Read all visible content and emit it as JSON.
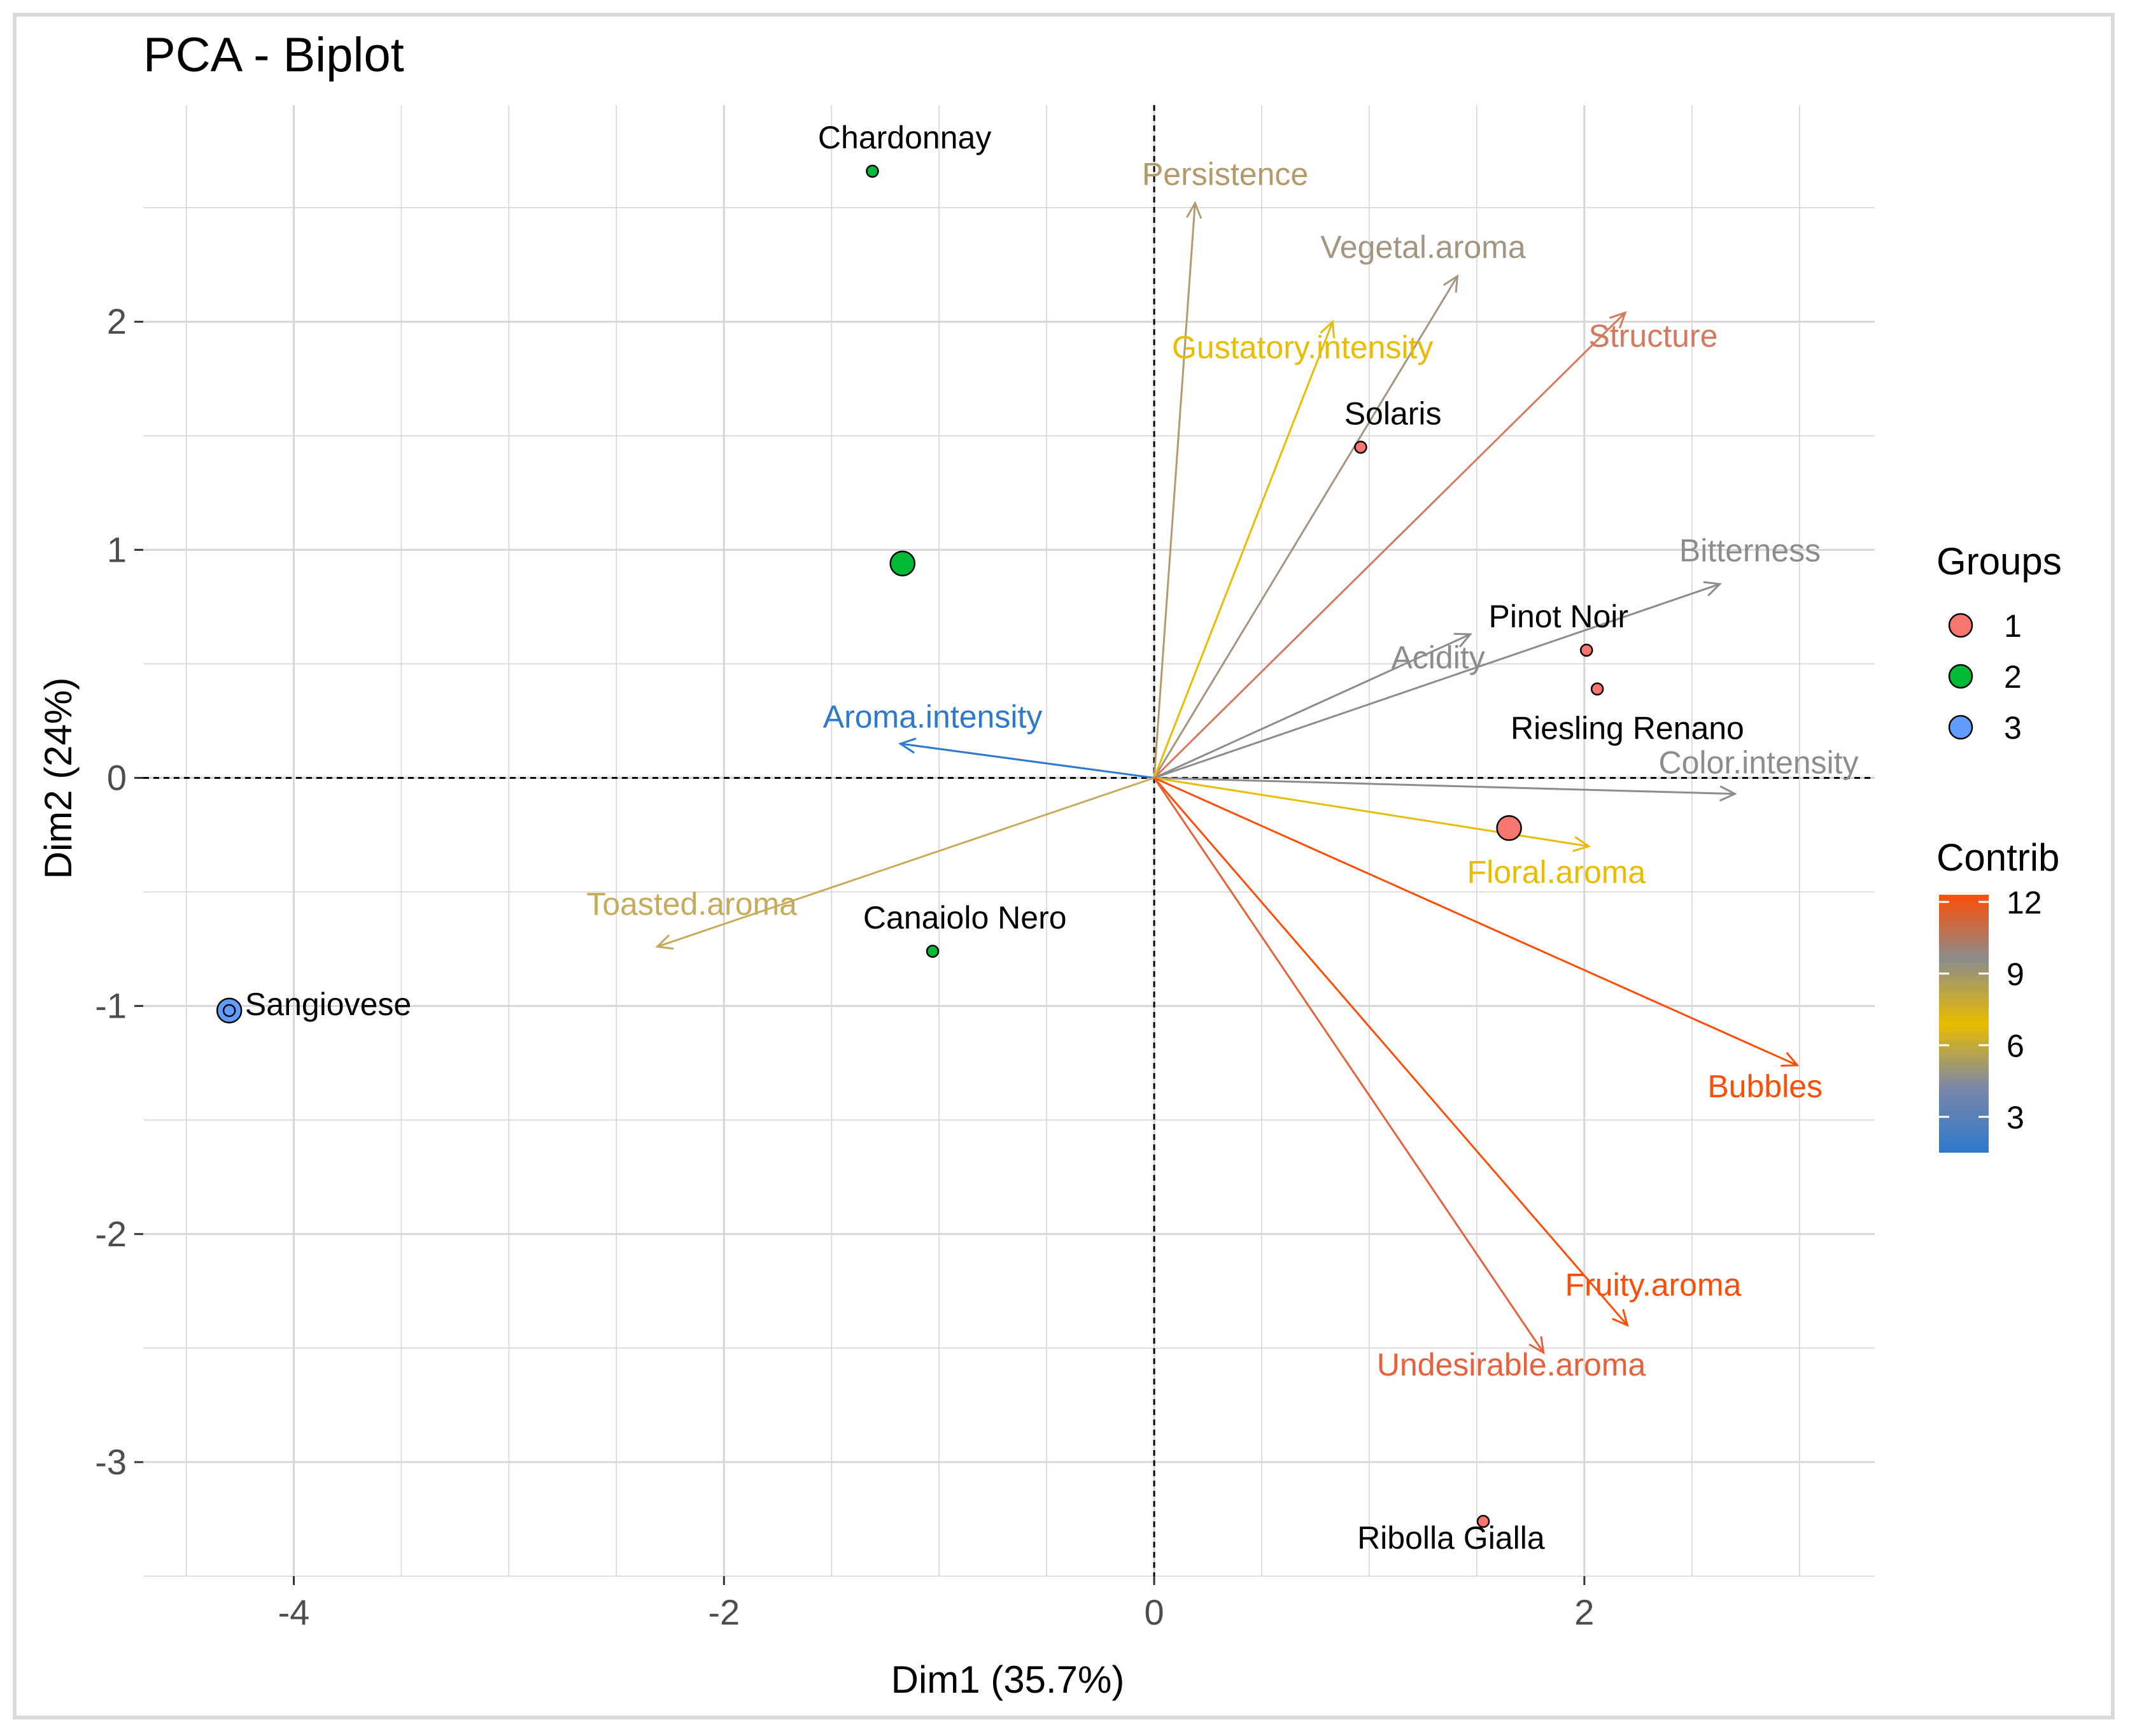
{
  "chart_data": {
    "type": "scatter",
    "subtype": "pca-biplot",
    "title": "PCA - Biplot",
    "xlabel": "Dim1 (35.7%)",
    "ylabel": "Dim2 (24%)",
    "xlim": [
      -4.7,
      3.35
    ],
    "ylim": [
      -3.5,
      2.95
    ],
    "xticks": [
      -4,
      -2,
      0,
      2
    ],
    "yticks": [
      -3,
      -2,
      -1,
      0,
      1,
      2
    ],
    "xtick_labels": [
      "-4",
      "-2",
      "0",
      "2"
    ],
    "ytick_labels": [
      "-3",
      "-2",
      "-1",
      "0",
      "1",
      "2"
    ],
    "grid": true,
    "legend_groups": {
      "title": "Groups",
      "entries": [
        {
          "label": "1",
          "color": "#F8766D"
        },
        {
          "label": "2",
          "color": "#00BA38"
        },
        {
          "label": "3",
          "color": "#619CFF"
        }
      ]
    },
    "legend_contrib": {
      "title": "Contrib",
      "range": [
        1.5,
        12.3
      ],
      "ticks": [
        3,
        6,
        9,
        12
      ],
      "tick_labels": [
        "3",
        "6",
        "9",
        "12"
      ],
      "gradient": [
        "#2E79CB",
        "#7A87A8",
        "#E8BC00",
        "#8C8C8C",
        "#FC4E07"
      ]
    },
    "individuals": [
      {
        "name": "Chardonnay",
        "x": -1.31,
        "y": 2.66,
        "group": "2",
        "label_dx": 0.15,
        "label_dy": 0.1
      },
      {
        "name": "Solaris",
        "x": 0.96,
        "y": 1.45,
        "group": "1",
        "label_dx": 0.15,
        "label_dy": 0.1
      },
      {
        "name": "Pinot Noir",
        "x": 2.01,
        "y": 0.56,
        "group": "1",
        "label_dx": -0.13,
        "label_dy": 0.1
      },
      {
        "name": "Riesling Renano",
        "x": 2.06,
        "y": 0.39,
        "group": "1",
        "label_dx": 0.14,
        "label_dy": -0.22
      },
      {
        "name": "Canaiolo Nero",
        "x": -1.03,
        "y": -0.76,
        "group": "2",
        "label_dx": 0.15,
        "label_dy": 0.1
      },
      {
        "name": "Sangiovese",
        "x": -4.3,
        "y": -1.02,
        "group": "3",
        "label_dx": 0.46,
        "label_dy": -0.02
      },
      {
        "name": "Ribolla Gialla",
        "x": 1.53,
        "y": -3.26,
        "group": "1",
        "label_dx": -0.15,
        "label_dy": -0.12
      }
    ],
    "centroids": [
      {
        "group": "2",
        "x": -1.17,
        "y": 0.94
      },
      {
        "group": "1",
        "x": 1.65,
        "y": -0.22
      },
      {
        "group": "3",
        "x": -4.3,
        "y": -1.02
      }
    ],
    "variables": [
      {
        "name": "Persistence",
        "x": 0.19,
        "y": 2.52,
        "contrib": 7.0,
        "color": "#B39A6B",
        "label_x": 0.33,
        "label_y": 2.6
      },
      {
        "name": "Vegetal.aroma",
        "x": 1.41,
        "y": 2.2,
        "contrib": 7.9,
        "color": "#A39580",
        "label_x": 1.25,
        "label_y": 2.28
      },
      {
        "name": "Structure",
        "x": 2.19,
        "y": 2.04,
        "contrib": 11.0,
        "color": "#D4785E",
        "label_x": 2.32,
        "label_y": 1.89
      },
      {
        "name": "Gustatory.intensity",
        "x": 0.83,
        "y": 2.0,
        "contrib": 5.8,
        "color": "#E8BC00",
        "label_x": 0.69,
        "label_y": 1.84
      },
      {
        "name": "Bitterness",
        "x": 2.63,
        "y": 0.85,
        "contrib": 9.3,
        "color": "#8C8C8C",
        "label_x": 2.77,
        "label_y": 0.95
      },
      {
        "name": "Acidity",
        "x": 1.47,
        "y": 0.63,
        "contrib": 8.9,
        "color": "#8C8C8C",
        "label_x": 1.32,
        "label_y": 0.48
      },
      {
        "name": "Color.intensity",
        "x": 2.7,
        "y": -0.07,
        "contrib": 9.0,
        "color": "#8C8C8C",
        "label_x": 2.81,
        "label_y": 0.02
      },
      {
        "name": "Aroma.intensity",
        "x": -1.18,
        "y": 0.15,
        "contrib": 2.5,
        "color": "#2E79CB",
        "label_x": -1.03,
        "label_y": 0.22
      },
      {
        "name": "Floral.aroma",
        "x": 2.02,
        "y": -0.3,
        "contrib": 5.6,
        "color": "#E8BC00",
        "label_x": 1.87,
        "label_y": -0.46
      },
      {
        "name": "Toasted.aroma",
        "x": -2.31,
        "y": -0.74,
        "contrib": 6.8,
        "color": "#C4AC5C",
        "label_x": -2.15,
        "label_y": -0.6
      },
      {
        "name": "Bubbles",
        "x": 2.99,
        "y": -1.26,
        "contrib": 12.0,
        "color": "#FC4E07",
        "label_x": 2.84,
        "label_y": -1.4
      },
      {
        "name": "Fruity.aroma",
        "x": 2.2,
        "y": -2.4,
        "contrib": 11.9,
        "color": "#FC4E07",
        "label_x": 2.32,
        "label_y": -2.27
      },
      {
        "name": "Undesirable.aroma",
        "x": 1.81,
        "y": -2.52,
        "contrib": 11.4,
        "color": "#E8603C",
        "label_x": 1.66,
        "label_y": -2.62
      }
    ]
  }
}
